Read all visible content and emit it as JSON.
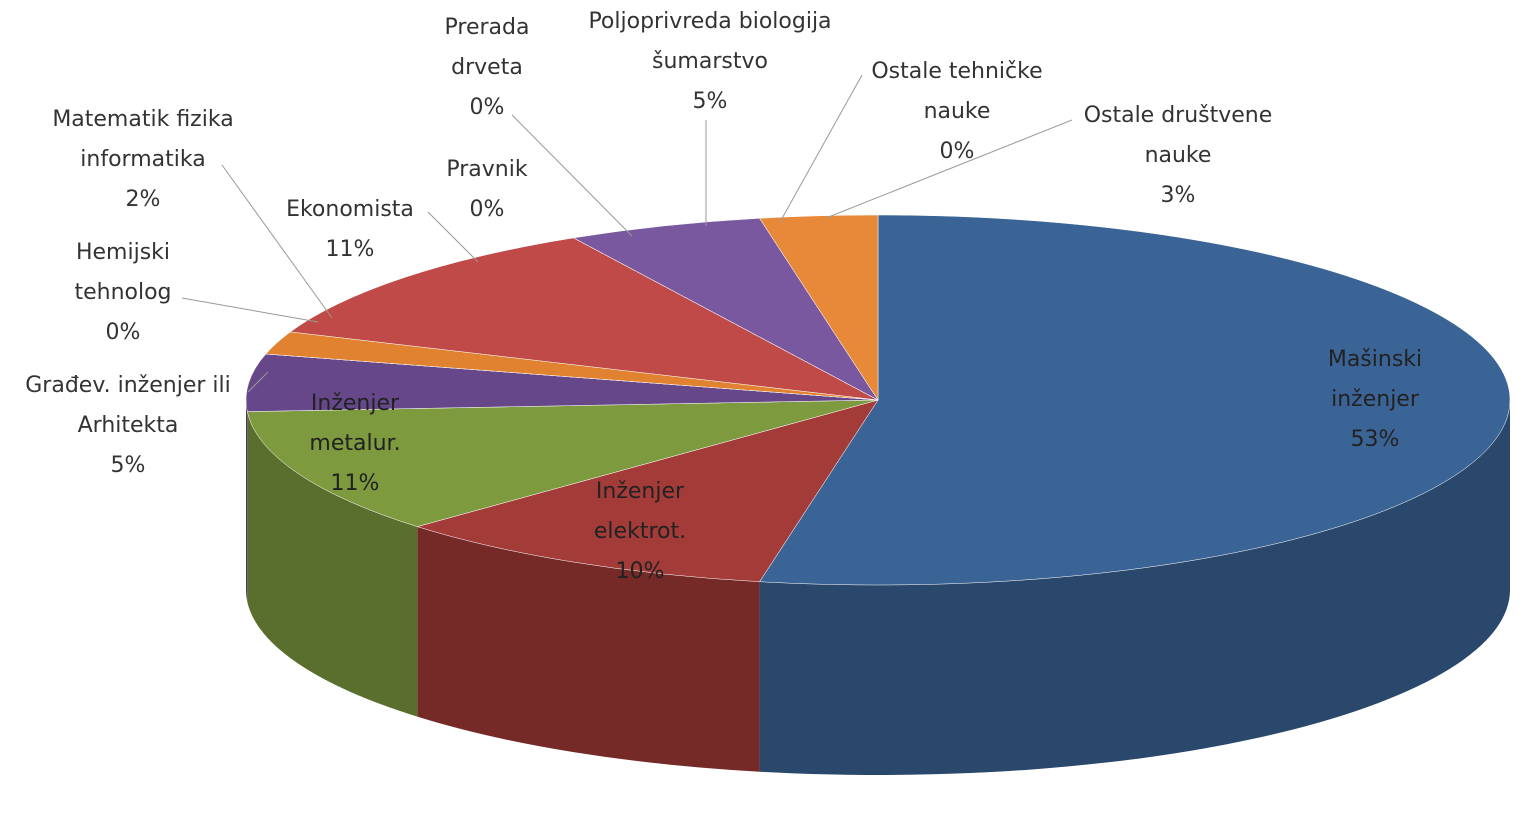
{
  "chart_data": {
    "type": "pie3d",
    "categories": [
      "Mašinski inženjer",
      "Inženjer elektrot.",
      "Inženjer metalur.",
      "Građev. inženjer ili Arhitekta",
      "Hemijski tehnolog",
      "Matematik fizika informatika",
      "Ekonomista",
      "Pravnik",
      "Prerada drveta",
      "Poljoprivreda biologija šumarstvo",
      "Ostale tehničke nauke",
      "Ostale društvene nauke"
    ],
    "values": [
      53,
      10,
      11,
      5,
      0,
      2,
      11,
      0,
      0,
      5,
      0,
      3
    ],
    "value_labels": [
      "53%",
      "10%",
      "11%",
      "5%",
      "0%",
      "2%",
      "11%",
      "0%",
      "0%",
      "5%",
      "0%",
      "3%"
    ],
    "colors": [
      "#3b6496",
      "#a33b38",
      "#7d9a3f",
      "#65478a",
      "#3f9fb8",
      "#e0822f",
      "#bf4a47",
      "#3b6496",
      "#a33b38",
      "#7a58a0",
      "#3f9fb8",
      "#e8893a"
    ]
  }
}
